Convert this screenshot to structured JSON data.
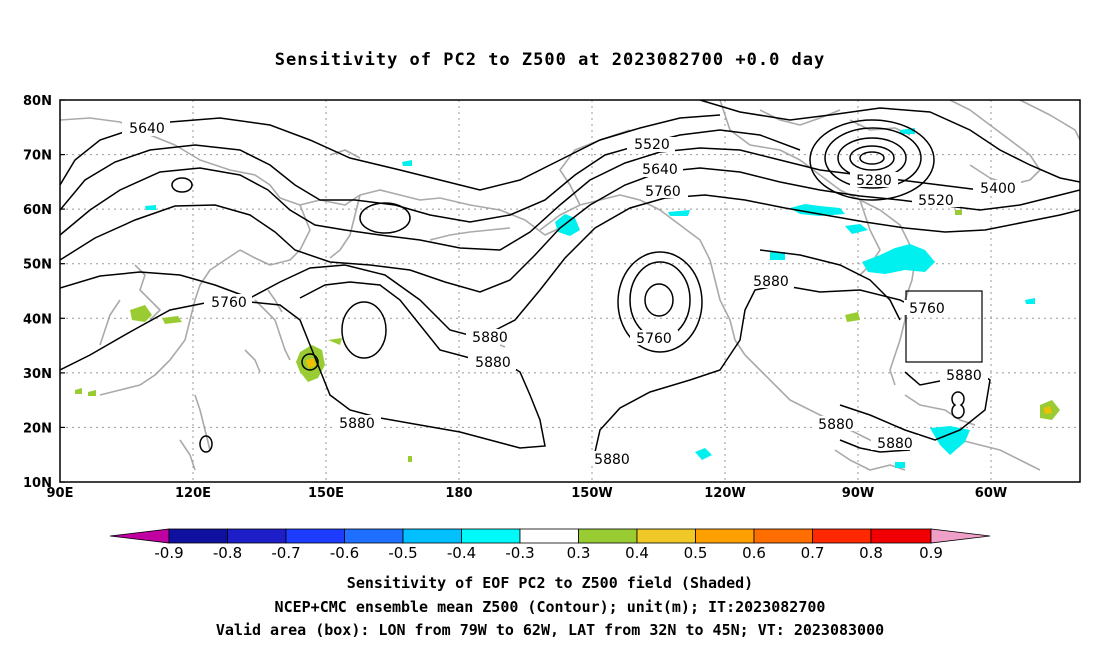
{
  "title": "Sensitivity of PC2 to Z500 at 2023082700 +0.0 day",
  "map": {
    "lat_ticks": [
      "80N",
      "70N",
      "60N",
      "50N",
      "40N",
      "30N",
      "20N",
      "10N"
    ],
    "lon_ticks": [
      "90E",
      "120E",
      "150E",
      "180",
      "150W",
      "120W",
      "90W",
      "60W"
    ],
    "contour_labels": [
      "5640",
      "5520",
      "5640",
      "5760",
      "5280",
      "5400",
      "5520",
      "5760",
      "5880",
      "5760",
      "5760",
      "5880",
      "5880",
      "5880",
      "5880",
      "5880",
      "5880"
    ],
    "valid_box": {
      "lon": [
        -79,
        -62
      ],
      "lat": [
        32,
        45
      ]
    },
    "colors": {
      "coast": "#aaaaaa",
      "contour": "#000000",
      "grid": "#999999",
      "cyan": "#00f0f0",
      "green": "#99cc33",
      "yellow": "#f0c000"
    }
  },
  "colorbar": {
    "labels": [
      "-0.9",
      "-0.8",
      "-0.7",
      "-0.6",
      "-0.5",
      "-0.4",
      "-0.3",
      "0.3",
      "0.4",
      "0.5",
      "0.6",
      "0.7",
      "0.8",
      "0.9"
    ],
    "colors": [
      "#c000a0",
      "#1010a0",
      "#1e1ec8",
      "#1e3cff",
      "#1e6eff",
      "#00a0ff",
      "#00d2f0",
      "#00fafa",
      "#ffffff",
      "#99cc33",
      "#f0c828",
      "#ffa000",
      "#ff6e00",
      "#ff2800",
      "#f00000",
      "#f0a0c8"
    ]
  },
  "captions": [
    "Sensitivity of EOF PC2 to Z500 field (Shaded)",
    "NCEP+CMC ensemble mean Z500 (Contour); unit(m); IT:2023082700",
    "Valid area (box): LON from 79W to 62W, LAT from 32N to 45N; VT: 2023083000"
  ]
}
